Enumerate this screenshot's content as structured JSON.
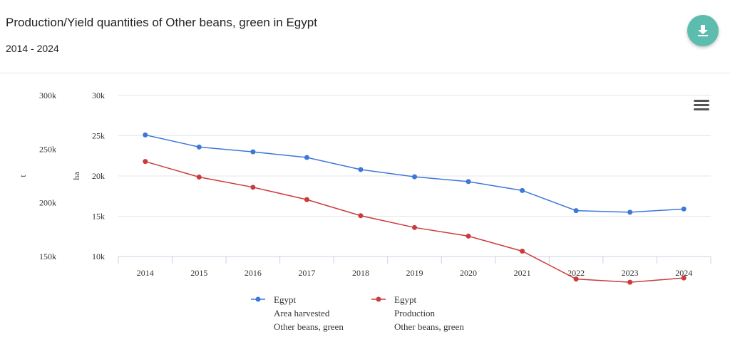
{
  "header": {
    "title": "Production/Yield quantities of Other beans, green in Egypt",
    "subtitle": "2014 - 2024"
  },
  "icons": {
    "download": "download-icon",
    "menu": "hamburger-menu-icon"
  },
  "chart_data": {
    "type": "line",
    "x": [
      "2014",
      "2015",
      "2016",
      "2017",
      "2018",
      "2019",
      "2020",
      "2021",
      "2022",
      "2023",
      "2024"
    ],
    "y_left_outer": {
      "label": "t",
      "ticks": [
        "300k",
        "250k",
        "200k",
        "150k"
      ],
      "range": [
        150000,
        300000
      ]
    },
    "y_left_inner": {
      "label": "ha",
      "ticks": [
        "30k",
        "25k",
        "20k",
        "15k",
        "10k"
      ],
      "range": [
        10000,
        30000
      ]
    },
    "grid": true,
    "legend_position": "bottom",
    "series": [
      {
        "name": "Egypt",
        "lines": [
          "Egypt",
          "Area harvested",
          "Other beans, green"
        ],
        "axis": "ha",
        "color": "#3d78d8",
        "values": [
          25100,
          23600,
          23000,
          22300,
          20800,
          19900,
          19300,
          18200,
          15700,
          15500,
          15900
        ]
      },
      {
        "name": "Egypt",
        "lines": [
          "Egypt",
          "Production",
          "Other beans, green"
        ],
        "axis": "t",
        "color": "#cc3b3b",
        "values": [
          238500,
          224000,
          214500,
          203000,
          188000,
          177000,
          169000,
          155000,
          129000,
          126000,
          130000
        ]
      }
    ]
  }
}
